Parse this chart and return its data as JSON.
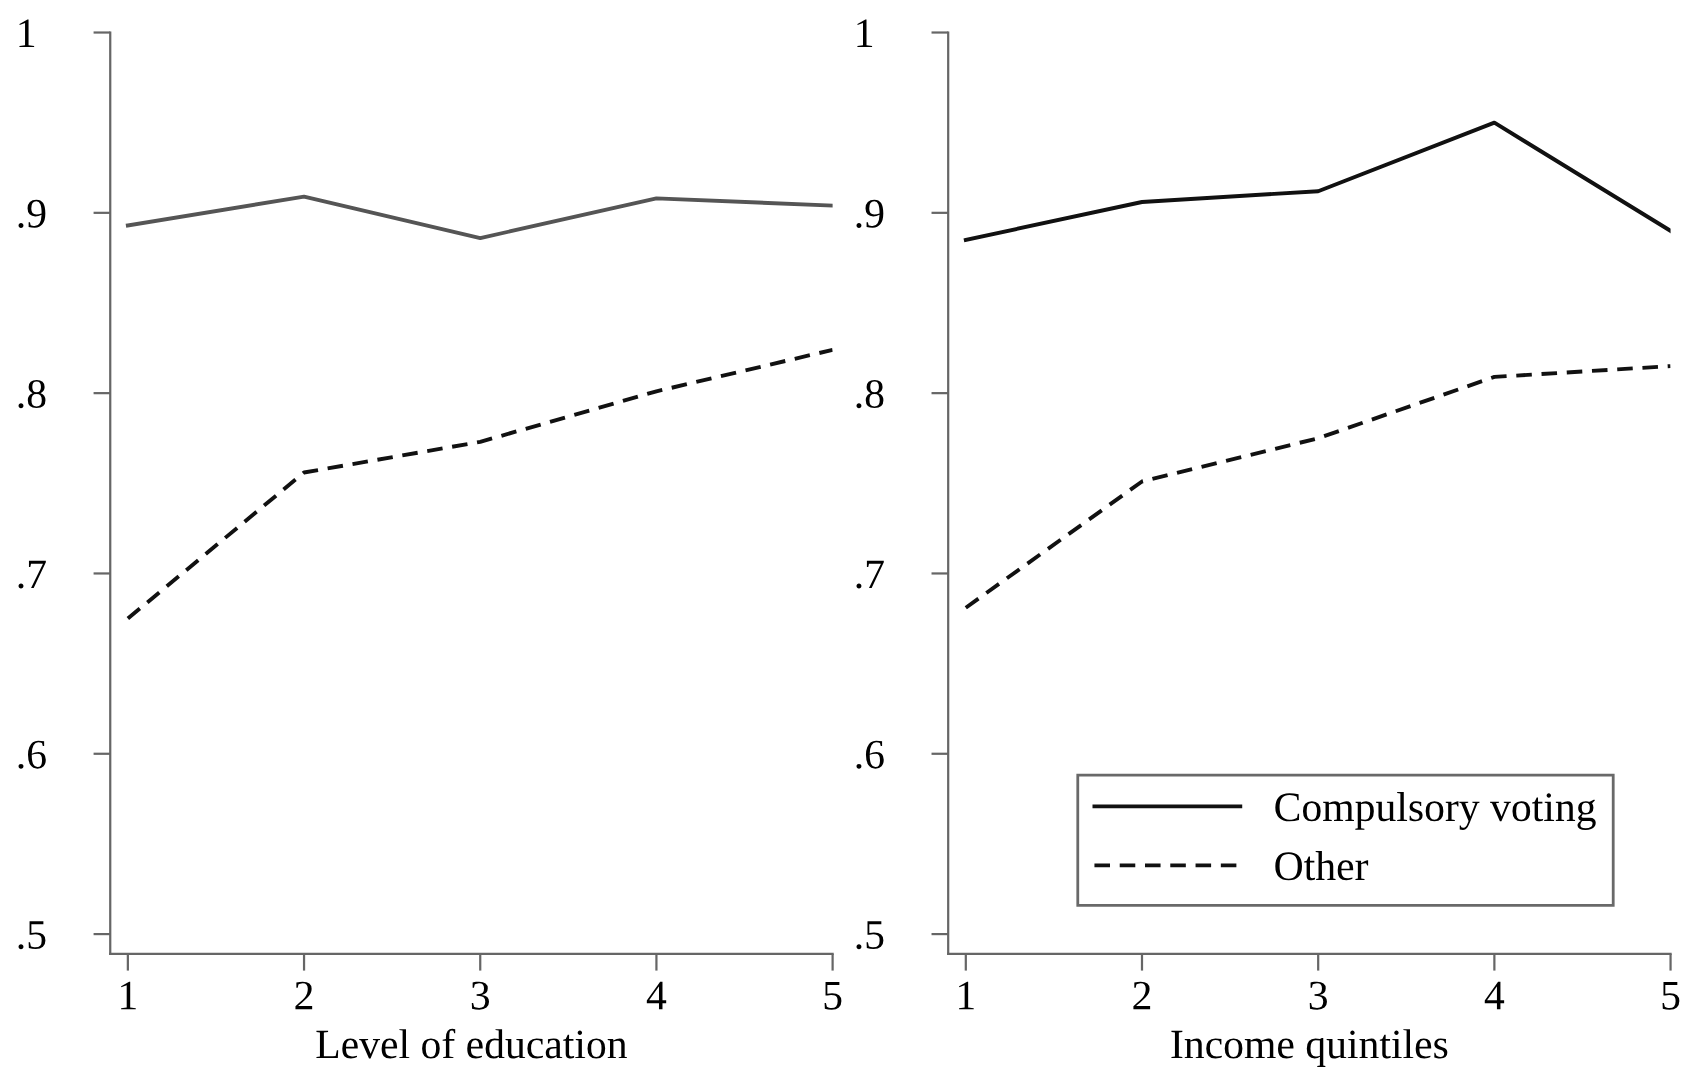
{
  "chart_data": [
    {
      "type": "line",
      "xlabel": "Level of education",
      "x": [
        1,
        2,
        3,
        4,
        5
      ],
      "xlim": [
        0.9,
        5
      ],
      "xticks": [
        1,
        2,
        3,
        4,
        5
      ],
      "ylim": [
        0.489,
        1
      ],
      "yticks": [
        {
          "value": 0.5,
          "label": ".5"
        },
        {
          "value": 0.6,
          "label": ".6"
        },
        {
          "value": 0.7,
          "label": ".7"
        },
        {
          "value": 0.8,
          "label": ".8"
        },
        {
          "value": 0.9,
          "label": ".9"
        },
        {
          "value": 1,
          "label": "1"
        }
      ],
      "grid": false,
      "legend": false,
      "series": [
        {
          "color": "#555555",
          "line_style": "solid",
          "values": [
            0.893,
            0.909,
            0.886,
            0.908,
            0.904
          ]
        },
        {
          "color": "#111111",
          "line_style": "dashed",
          "values": [
            0.675,
            0.756,
            0.773,
            0.801,
            0.824
          ]
        }
      ]
    },
    {
      "type": "line",
      "xlabel": "Income quintiles",
      "x": [
        1,
        2,
        3,
        4,
        5
      ],
      "xlim": [
        0.9,
        5
      ],
      "xticks": [
        1,
        2,
        3,
        4,
        5
      ],
      "ylim": [
        0.489,
        1
      ],
      "yticks": [
        {
          "value": 0.5,
          "label": ".5"
        },
        {
          "value": 0.6,
          "label": ".6"
        },
        {
          "value": 0.7,
          "label": ".7"
        },
        {
          "value": 0.8,
          "label": ".8"
        },
        {
          "value": 0.9,
          "label": ".9"
        },
        {
          "value": 1,
          "label": "1"
        }
      ],
      "grid": false,
      "legend": "bottom",
      "series": [
        {
          "name": "Compulsory voting",
          "color": "#111111",
          "line_style": "solid",
          "values": [
            0.885,
            0.906,
            0.912,
            0.95,
            0.89
          ]
        },
        {
          "name": "Other",
          "color": "#111111",
          "line_style": "dashed",
          "values": [
            0.681,
            0.751,
            0.775,
            0.809,
            0.815
          ]
        }
      ]
    }
  ]
}
